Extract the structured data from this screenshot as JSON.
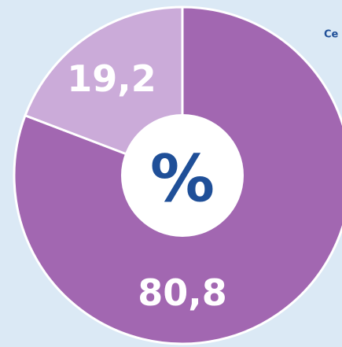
{
  "chart_data": {
    "type": "donut",
    "values": [
      80.8,
      19.2
    ],
    "value_labels": [
      "80,8",
      "19,2"
    ],
    "colors": [
      "#a267b1",
      "#cbabd9"
    ],
    "center_label": "%",
    "annotation": "Ce"
  }
}
